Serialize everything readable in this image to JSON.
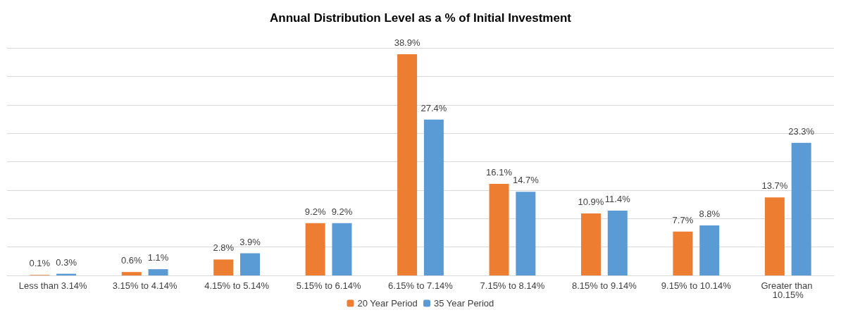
{
  "chart_data": {
    "type": "bar",
    "title": "Annual Distribution Level as a % of Initial Investment",
    "categories": [
      "Less than 3.14%",
      "3.15% to 4.14%",
      "4.15% to 5.14%",
      "5.15% to 6.14%",
      "6.15% to 7.14%",
      "7.15% to 8.14%",
      "8.15% to 9.14%",
      "9.15% to 10.14%",
      "Greater than 10.15%"
    ],
    "series": [
      {
        "name": "20 Year Period",
        "color": "#ed7d31",
        "values": [
          0.1,
          0.6,
          2.8,
          9.2,
          38.9,
          16.1,
          10.9,
          7.7,
          13.7
        ],
        "value_labels": [
          "0.1%",
          "0.6%",
          "2.8%",
          "9.2%",
          "38.9%",
          "16.1%",
          "10.9%",
          "7.7%",
          "13.7%"
        ]
      },
      {
        "name": "35 Year Period",
        "color": "#5b9bd5",
        "values": [
          0.3,
          1.1,
          3.9,
          9.2,
          27.4,
          14.7,
          11.4,
          8.8,
          23.3
        ],
        "value_labels": [
          "0.3%",
          "1.1%",
          "3.9%",
          "9.2%",
          "27.4%",
          "14.7%",
          "11.4%",
          "8.8%",
          "23.3%"
        ]
      }
    ],
    "ylim": [
      0,
      40
    ],
    "yticks": [
      {
        "value": 0,
        "label": null
      },
      {
        "value": 5,
        "label": null
      },
      {
        "value": 10,
        "label": null
      },
      {
        "value": 15,
        "label": null
      },
      {
        "value": 20,
        "label": null
      },
      {
        "value": 25,
        "label": null
      },
      {
        "value": 30,
        "label": null
      },
      {
        "value": 35,
        "label": null
      },
      {
        "value": 40,
        "label": null
      }
    ],
    "tick_labels": "x",
    "grid": "y",
    "legend": "bottom"
  }
}
